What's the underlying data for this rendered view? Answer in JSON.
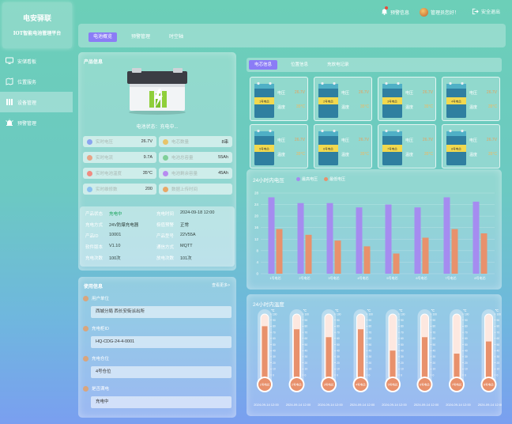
{
  "app": {
    "logo_title": "电安驿联",
    "logo_subtitle": "IOT智能电池管理平台"
  },
  "sidebar": {
    "items": [
      {
        "label": "安储看板",
        "icon": "monitor-icon"
      },
      {
        "label": "位置服务",
        "icon": "map-icon"
      },
      {
        "label": "设备管理",
        "icon": "device-icon",
        "active": true
      },
      {
        "label": "预警管理",
        "icon": "alarm-icon"
      }
    ]
  },
  "topbar": {
    "alert": "预警信息",
    "user": "管理员您好！",
    "logout": "安全退出"
  },
  "subnav": {
    "tabs": [
      {
        "label": "电池概览",
        "active": true
      },
      {
        "label": "预警管理"
      },
      {
        "label": "时空轴"
      }
    ]
  },
  "product": {
    "title": "产品信息",
    "status": "电池状态：充电中...",
    "metrics": [
      {
        "label": "实时电压",
        "value": "26.7V",
        "color": "#8aa4f0"
      },
      {
        "label": "电芯数量",
        "value": "8串",
        "color": "#e8c46a"
      },
      {
        "label": "实时电流",
        "value": "9.7A",
        "color": "#e7a487"
      },
      {
        "label": "电池总容量",
        "value": "55Ah",
        "color": "#7fcf99"
      },
      {
        "label": "实时电池温度",
        "value": "35°C",
        "color": "#f08b82"
      },
      {
        "label": "电池剩余容量",
        "value": "45Ah",
        "color": "#b78bf0"
      },
      {
        "label": "实时维修数",
        "value": "200",
        "color": "#8ac0f0"
      },
      {
        "label": "数据上传时间",
        "value": "",
        "color": "#e8a867"
      }
    ],
    "info": [
      {
        "k1": "产品状态",
        "v1": "充电中",
        "k2": "充电时间",
        "v2": "2024-09-18 12:00"
      },
      {
        "k1": "充电方式",
        "v1": "24V防爆充电器",
        "k2": "极值预警",
        "v2": "正常"
      },
      {
        "k1": "产品ID",
        "v1": "10001",
        "k2": "产品型号",
        "v2": "22V55A"
      },
      {
        "k1": "软件版本",
        "v1": "V1.10",
        "k2": "通信方式",
        "v2": "MQTT"
      },
      {
        "k1": "充电次数",
        "v1": "100次",
        "k2": "放电次数",
        "v2": "101次"
      }
    ]
  },
  "usage": {
    "title": "使用信息",
    "more": "查看更多>",
    "items": [
      {
        "label": "用户单位",
        "value": "西城分局 西长安街派出所"
      },
      {
        "label": "充电柜ID",
        "value": "HQ-CDG-24-4-0001"
      },
      {
        "label": "充电仓位",
        "value": "4号仓位"
      },
      {
        "label": "是否满电",
        "value": "充电中"
      }
    ]
  },
  "cells": {
    "tabs": [
      {
        "label": "电芯信息",
        "active": true
      },
      {
        "label": "位置信息"
      },
      {
        "label": "充放电记录"
      }
    ],
    "voltage_label": "电压",
    "temp_label": "温度",
    "list": [
      {
        "name": "1号电芯",
        "voltage": "26.7V",
        "temp": "35°C"
      },
      {
        "name": "2号电芯",
        "voltage": "26.7V",
        "temp": "35°C"
      },
      {
        "name": "3号电芯",
        "voltage": "26.7V",
        "temp": "35°C"
      },
      {
        "name": "4号电芯",
        "voltage": "26.7V",
        "temp": "35°C"
      },
      {
        "name": "5号电芯",
        "voltage": "26.7V",
        "temp": "35°C"
      },
      {
        "name": "6号电芯",
        "voltage": "26.7V",
        "temp": "35°C"
      },
      {
        "name": "7号电芯",
        "voltage": "26.7V",
        "temp": "35°C"
      },
      {
        "name": "8号电芯",
        "voltage": "26.7V",
        "temp": "35°C"
      }
    ]
  },
  "chart_data": [
    {
      "type": "bar",
      "title": "24小时内电压",
      "categories": [
        "1号电芯",
        "2号电芯",
        "3号电芯",
        "4号电芯",
        "5号电芯",
        "6号电芯",
        "7号电芯",
        "8号电芯"
      ],
      "series": [
        {
          "name": "最高电压",
          "color": "#a58cf0",
          "values": [
            26.5,
            24.5,
            24.5,
            23,
            24,
            23,
            26.5,
            25
          ]
        },
        {
          "name": "最低电压",
          "color": "#e8916c",
          "values": [
            15.5,
            13.5,
            11.5,
            9.5,
            7,
            12.5,
            15.5,
            14
          ]
        }
      ],
      "yticks": [
        0,
        4,
        8,
        12,
        16,
        20,
        24,
        28
      ],
      "ylim": [
        0,
        28
      ]
    },
    {
      "type": "bar",
      "title": "24小时内温度",
      "categories": [
        "1号电芯",
        "2号电芯",
        "3号电芯",
        "4号电芯",
        "5号电芯",
        "6号电芯",
        "7号电芯",
        "8号电芯"
      ],
      "series": [
        {
          "name": "温度",
          "color": "#e8916c",
          "values": [
            80,
            75,
            62,
            75,
            40,
            62,
            35,
            55
          ]
        }
      ],
      "yticks": [
        0,
        10,
        20,
        30,
        40,
        50,
        60,
        70,
        80,
        90,
        100
      ],
      "ylim": [
        0,
        100
      ],
      "unit": "℃",
      "timestamps": [
        "2024-09-14 12:00",
        "2024-09-14 12:00",
        "2024-09-14 12:00",
        "2024-09-14 12:00",
        "2024-09-14 12:00",
        "2024-09-14 12:00",
        "2024-09-14 12:00",
        "2024-09-14 12:00"
      ]
    }
  ]
}
